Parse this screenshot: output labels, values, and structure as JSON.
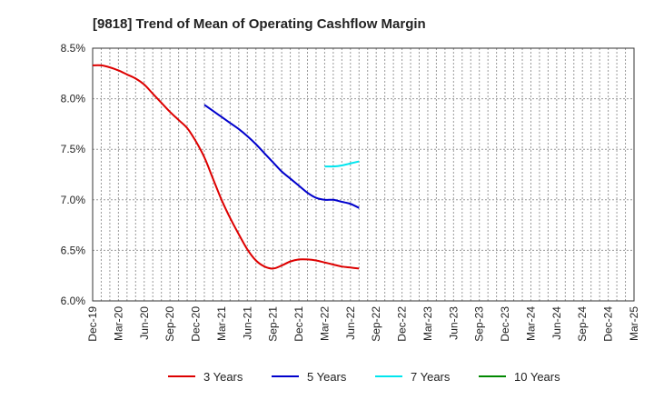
{
  "chart_data": {
    "type": "line",
    "title": "[9818]  Trend of Mean of Operating Cashflow Margin",
    "xlabel": "",
    "ylabel": "",
    "x_tick_labels": [
      "Dec-19",
      "Mar-20",
      "Jun-20",
      "Sep-20",
      "Dec-20",
      "Mar-21",
      "Jun-21",
      "Sep-21",
      "Dec-21",
      "Mar-22",
      "Jun-22",
      "Sep-22",
      "Dec-22",
      "Mar-23",
      "Jun-23",
      "Sep-23",
      "Dec-23",
      "Mar-24",
      "Jun-24",
      "Sep-24",
      "Dec-24",
      "Mar-25"
    ],
    "y_ticks": [
      6.0,
      6.5,
      7.0,
      7.5,
      8.0,
      8.5
    ],
    "y_tick_labels": [
      "6.0%",
      "6.5%",
      "7.0%",
      "7.5%",
      "8.0%",
      "8.5%"
    ],
    "ylim": [
      6.0,
      8.5
    ],
    "grid": true,
    "legend_position": "bottom",
    "series": [
      {
        "name": "3 Years",
        "color": "#dd0000",
        "values": [
          8.33,
          8.33,
          8.31,
          8.28,
          8.24,
          8.2,
          8.14,
          8.05,
          7.96,
          7.87,
          7.79,
          7.71,
          7.58,
          7.42,
          7.21,
          7.0,
          6.82,
          6.66,
          6.51,
          6.4,
          6.34,
          6.32,
          6.35,
          6.39,
          6.41,
          6.41,
          6.4,
          6.38,
          6.36,
          6.34,
          6.33,
          6.32
        ]
      },
      {
        "name": "5 Years",
        "color": "#0000cc",
        "values": [
          null,
          null,
          null,
          null,
          null,
          null,
          null,
          null,
          null,
          null,
          null,
          null,
          null,
          7.94,
          7.88,
          7.82,
          7.76,
          7.7,
          7.63,
          7.55,
          7.46,
          7.37,
          7.28,
          7.21,
          7.14,
          7.07,
          7.02,
          7.0,
          7.0,
          6.98,
          6.96,
          6.92
        ]
      },
      {
        "name": "7 Years",
        "color": "#00e5ee",
        "values": [
          null,
          null,
          null,
          null,
          null,
          null,
          null,
          null,
          null,
          null,
          null,
          null,
          null,
          null,
          null,
          null,
          null,
          null,
          null,
          null,
          null,
          null,
          null,
          null,
          null,
          null,
          null,
          7.33,
          7.33,
          7.34,
          7.36,
          7.38
        ]
      },
      {
        "name": "10 Years",
        "color": "#008800",
        "values": []
      }
    ]
  }
}
